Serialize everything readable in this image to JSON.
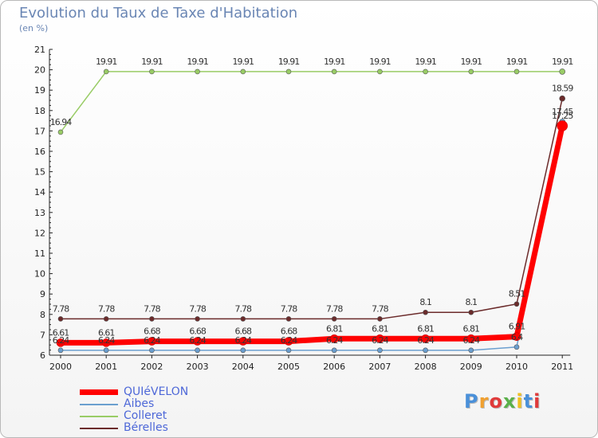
{
  "title": "Evolution du Taux de Taxe d'Habitation",
  "subtitle": "(en %)",
  "logo_text": "Proxiti",
  "chart_data": {
    "type": "line",
    "x": [
      "2000",
      "2001",
      "2002",
      "2003",
      "2004",
      "2005",
      "2006",
      "2007",
      "2008",
      "2009",
      "2010",
      "2011"
    ],
    "ylim": [
      6,
      21
    ],
    "yticks": [
      6,
      7,
      8,
      9,
      10,
      11,
      12,
      13,
      14,
      15,
      16,
      17,
      18,
      19,
      20,
      21
    ],
    "grid": false,
    "legend_position": "bottom-left",
    "series": [
      {
        "name": "QUIéVELON",
        "color": "#ff0000",
        "values": [
          6.61,
          6.61,
          6.68,
          6.68,
          6.68,
          6.68,
          6.81,
          6.81,
          6.81,
          6.81,
          6.91,
          17.25
        ],
        "labels": [
          "6.61",
          "6.61",
          "6.68",
          "6.68",
          "6.68",
          "6.68",
          "6.81",
          "6.81",
          "6.81",
          "6.81",
          "6.91",
          "17.25"
        ]
      },
      {
        "name": "Aibes",
        "color": "#6b9fcf",
        "values": [
          6.24,
          6.24,
          6.24,
          6.24,
          6.24,
          6.24,
          6.24,
          6.24,
          6.24,
          6.24,
          6.4,
          17.45
        ],
        "labels": [
          "6.24",
          "6.24",
          "6.24",
          "6.24",
          "6.24",
          "6.24",
          "6.24",
          "6.24",
          "6.24",
          "6.24",
          "6.4",
          "17.45"
        ]
      },
      {
        "name": "Colleret",
        "color": "#99cc66",
        "values": [
          16.94,
          19.91,
          19.91,
          19.91,
          19.91,
          19.91,
          19.91,
          19.91,
          19.91,
          19.91,
          19.91,
          19.91
        ],
        "labels": [
          "16.94",
          "19.91",
          "19.91",
          "19.91",
          "19.91",
          "19.91",
          "19.91",
          "19.91",
          "19.91",
          "19.91",
          "19.91",
          "19.91"
        ]
      },
      {
        "name": "Bérelles",
        "color": "#6b2b2b",
        "values": [
          7.78,
          7.78,
          7.78,
          7.78,
          7.78,
          7.78,
          7.78,
          7.78,
          8.1,
          8.1,
          8.51,
          18.59
        ],
        "labels": [
          "7.78",
          "7.78",
          "7.78",
          "7.78",
          "7.78",
          "7.78",
          "7.78",
          "7.78",
          "8.1",
          "8.1",
          "8.51",
          "18.59"
        ]
      }
    ]
  }
}
